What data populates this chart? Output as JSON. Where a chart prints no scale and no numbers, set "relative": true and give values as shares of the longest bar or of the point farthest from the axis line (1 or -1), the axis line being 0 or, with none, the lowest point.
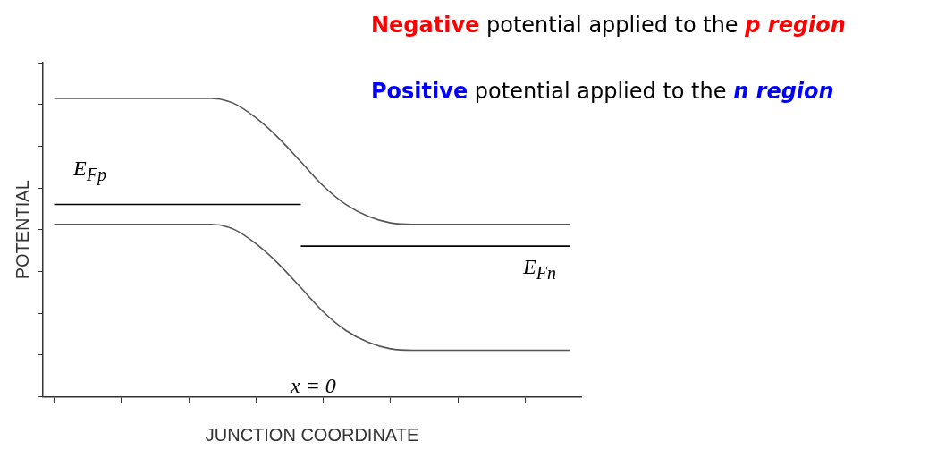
{
  "chart_data": {
    "type": "line",
    "relative": true,
    "xlabel": "JUNCTION COORDINATE",
    "ylabel": "POTENTIAL",
    "categories": [
      null,
      null,
      null,
      null,
      null,
      null,
      null,
      null,
      null,
      null,
      null,
      null,
      null,
      null,
      null,
      null,
      null,
      null,
      null,
      null,
      null,
      null,
      null,
      null
    ],
    "series": [
      {
        "color": "#555555",
        "values": [
          1,
          1,
          1,
          1,
          1,
          1,
          1,
          1,
          0.984,
          0.935,
          0.868,
          0.788,
          0.707,
          0.645,
          0.605,
          0.583,
          0.578,
          0.578,
          0.578,
          0.578,
          0.578,
          0.578,
          0.578,
          0.578
        ]
      },
      {
        "color": "#555555",
        "values": [
          0.578,
          0.578,
          0.578,
          0.578,
          0.578,
          0.578,
          0.578,
          0.578,
          0.562,
          0.513,
          0.446,
          0.366,
          0.285,
          0.223,
          0.183,
          0.161,
          0.156,
          0.156,
          0.156,
          0.156,
          0.156,
          0.156,
          0.156,
          0.156
        ]
      },
      {
        "color": "#000000",
        "values": [
          0.645,
          0.645,
          0.645,
          0.645,
          0.645,
          0.645,
          0.645,
          0.645,
          0.645,
          0.645,
          0.645,
          0.645,
          null,
          null,
          null,
          null,
          null,
          null,
          null,
          null,
          null,
          null,
          null,
          null
        ]
      },
      {
        "color": "#000000",
        "values": [
          null,
          null,
          null,
          null,
          null,
          null,
          null,
          null,
          null,
          null,
          null,
          0.505,
          0.505,
          0.505,
          0.505,
          0.505,
          0.505,
          0.505,
          0.505,
          0.505,
          0.505,
          0.505,
          0.505,
          0.505
        ]
      }
    ],
    "annotations": [
      "E$_{Fp}$",
      "E$_{Fn}$",
      "x = 0",
      "Negative potential applied to the p region",
      "Positive potential applied to the n region"
    ],
    "legend": false,
    "grid": false,
    "marker": "none",
    "line_style": "solid"
  }
}
